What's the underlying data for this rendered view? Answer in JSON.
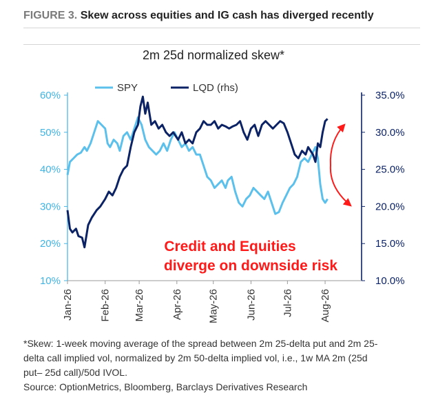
{
  "figure": {
    "label": "FIGURE 3.",
    "title": "Skew across equities and IG cash has diverged recently"
  },
  "chart_data": {
    "type": "line",
    "title": "2m 25d normalized skew*",
    "x_ticks": [
      "Jan-26",
      "Feb-26",
      "Mar-26",
      "Apr-26",
      "May-26",
      "Jun-26",
      "Jul-26",
      "Aug-26"
    ],
    "x_range": [
      "2026-01-01",
      "2026-08-31"
    ],
    "y_left": {
      "ticks": [
        "10%",
        "20%",
        "30%",
        "40%",
        "50%",
        "60%"
      ],
      "range": [
        10,
        60
      ],
      "color": "#40b4e5"
    },
    "y_right": {
      "ticks": [
        "10.0%",
        "15.0%",
        "20.0%",
        "25.0%",
        "30.0%",
        "35.0%"
      ],
      "range": [
        10,
        35
      ],
      "color": "#0b2265"
    },
    "grid": false,
    "legend": {
      "placement": "top-left"
    },
    "series": [
      {
        "name": "SPY",
        "axis": "left",
        "color": "#5bc0eb",
        "points": [
          [
            "2026-01-01",
            38.5
          ],
          [
            "2026-01-03",
            42
          ],
          [
            "2026-01-06",
            43
          ],
          [
            "2026-01-09",
            44
          ],
          [
            "2026-01-12",
            44.5
          ],
          [
            "2026-01-15",
            46
          ],
          [
            "2026-01-17",
            45
          ],
          [
            "2026-01-20",
            47
          ],
          [
            "2026-01-23",
            50
          ],
          [
            "2026-01-26",
            53
          ],
          [
            "2026-01-29",
            52
          ],
          [
            "2026-02-01",
            51
          ],
          [
            "2026-02-03",
            47
          ],
          [
            "2026-02-05",
            46
          ],
          [
            "2026-02-08",
            48
          ],
          [
            "2026-02-11",
            47
          ],
          [
            "2026-02-13",
            45
          ],
          [
            "2026-02-16",
            49
          ],
          [
            "2026-02-19",
            50
          ],
          [
            "2026-02-22",
            48
          ],
          [
            "2026-02-25",
            51
          ],
          [
            "2026-02-28",
            54
          ],
          [
            "2026-03-03",
            52
          ],
          [
            "2026-03-06",
            48
          ],
          [
            "2026-03-09",
            46
          ],
          [
            "2026-03-12",
            45
          ],
          [
            "2026-03-15",
            44
          ],
          [
            "2026-03-18",
            45
          ],
          [
            "2026-03-21",
            47
          ],
          [
            "2026-03-24",
            45
          ],
          [
            "2026-03-27",
            48
          ],
          [
            "2026-03-30",
            50
          ],
          [
            "2026-04-02",
            48
          ],
          [
            "2026-04-05",
            46
          ],
          [
            "2026-04-08",
            47
          ],
          [
            "2026-04-11",
            45
          ],
          [
            "2026-04-14",
            46
          ],
          [
            "2026-04-17",
            44
          ],
          [
            "2026-04-20",
            44
          ],
          [
            "2026-04-23",
            41
          ],
          [
            "2026-04-26",
            38
          ],
          [
            "2026-04-29",
            37
          ],
          [
            "2026-05-02",
            35
          ],
          [
            "2026-05-05",
            36
          ],
          [
            "2026-05-08",
            37
          ],
          [
            "2026-05-11",
            35
          ],
          [
            "2026-05-13",
            37
          ],
          [
            "2026-05-16",
            38
          ],
          [
            "2026-05-19",
            34
          ],
          [
            "2026-05-22",
            31
          ],
          [
            "2026-05-25",
            30
          ],
          [
            "2026-05-28",
            32
          ],
          [
            "2026-05-31",
            33
          ],
          [
            "2026-06-03",
            35
          ],
          [
            "2026-06-06",
            34
          ],
          [
            "2026-06-09",
            33
          ],
          [
            "2026-06-12",
            32
          ],
          [
            "2026-06-15",
            34
          ],
          [
            "2026-06-18",
            31
          ],
          [
            "2026-06-21",
            28
          ],
          [
            "2026-06-24",
            28.5
          ],
          [
            "2026-06-27",
            31
          ],
          [
            "2026-06-30",
            33
          ],
          [
            "2026-07-03",
            35
          ],
          [
            "2026-07-06",
            36
          ],
          [
            "2026-07-09",
            38
          ],
          [
            "2026-07-12",
            42
          ],
          [
            "2026-07-15",
            43
          ],
          [
            "2026-07-18",
            42
          ],
          [
            "2026-07-21",
            44
          ],
          [
            "2026-07-24",
            46
          ],
          [
            "2026-07-26",
            43
          ],
          [
            "2026-07-28",
            36
          ],
          [
            "2026-07-30",
            32
          ],
          [
            "2026-08-01",
            31
          ],
          [
            "2026-08-03",
            32
          ]
        ]
      },
      {
        "name": "LQD (rhs)",
        "axis": "right",
        "color": "#0b2265",
        "points": [
          [
            "2026-01-01",
            19.5
          ],
          [
            "2026-01-03",
            17
          ],
          [
            "2026-01-05",
            16.5
          ],
          [
            "2026-01-08",
            17
          ],
          [
            "2026-01-10",
            16
          ],
          [
            "2026-01-13",
            15.8
          ],
          [
            "2026-01-15",
            14.5
          ],
          [
            "2026-01-18",
            17.5
          ],
          [
            "2026-01-21",
            18.5
          ],
          [
            "2026-01-25",
            19.5
          ],
          [
            "2026-01-28",
            20
          ],
          [
            "2026-02-01",
            21
          ],
          [
            "2026-02-04",
            22
          ],
          [
            "2026-02-07",
            21.5
          ],
          [
            "2026-02-10",
            22.5
          ],
          [
            "2026-02-13",
            24
          ],
          [
            "2026-02-16",
            25
          ],
          [
            "2026-02-19",
            25.5
          ],
          [
            "2026-02-22",
            28
          ],
          [
            "2026-02-25",
            30
          ],
          [
            "2026-02-28",
            31
          ],
          [
            "2026-03-02",
            33.5
          ],
          [
            "2026-03-04",
            34.8
          ],
          [
            "2026-03-06",
            32.5
          ],
          [
            "2026-03-08",
            34
          ],
          [
            "2026-03-11",
            31
          ],
          [
            "2026-03-14",
            31.5
          ],
          [
            "2026-03-17",
            30.5
          ],
          [
            "2026-03-20",
            31
          ],
          [
            "2026-03-23",
            30
          ],
          [
            "2026-03-26",
            29.5
          ],
          [
            "2026-03-29",
            30
          ],
          [
            "2026-04-02",
            29
          ],
          [
            "2026-04-05",
            30
          ],
          [
            "2026-04-08",
            28.5
          ],
          [
            "2026-04-11",
            29
          ],
          [
            "2026-04-14",
            28.5
          ],
          [
            "2026-04-17",
            30
          ],
          [
            "2026-04-20",
            30.5
          ],
          [
            "2026-04-23",
            31.5
          ],
          [
            "2026-04-26",
            31
          ],
          [
            "2026-04-29",
            31
          ],
          [
            "2026-05-02",
            31.5
          ],
          [
            "2026-05-05",
            30.5
          ],
          [
            "2026-05-08",
            31
          ],
          [
            "2026-05-11",
            30.8
          ],
          [
            "2026-05-14",
            30.5
          ],
          [
            "2026-05-17",
            30.8
          ],
          [
            "2026-05-20",
            31
          ],
          [
            "2026-05-23",
            31.5
          ],
          [
            "2026-05-26",
            30
          ],
          [
            "2026-05-29",
            29
          ],
          [
            "2026-06-01",
            30.5
          ],
          [
            "2026-06-04",
            31
          ],
          [
            "2026-06-07",
            29.5
          ],
          [
            "2026-06-10",
            31
          ],
          [
            "2026-06-13",
            31.5
          ],
          [
            "2026-06-16",
            31
          ],
          [
            "2026-06-19",
            30.5
          ],
          [
            "2026-06-22",
            31
          ],
          [
            "2026-06-25",
            31.5
          ],
          [
            "2026-06-28",
            31.2
          ],
          [
            "2026-07-01",
            30
          ],
          [
            "2026-07-04",
            28.5
          ],
          [
            "2026-07-07",
            27
          ],
          [
            "2026-07-10",
            26.5
          ],
          [
            "2026-07-13",
            27.5
          ],
          [
            "2026-07-16",
            27
          ],
          [
            "2026-07-18",
            28
          ],
          [
            "2026-07-20",
            27.5
          ],
          [
            "2026-07-22",
            27
          ],
          [
            "2026-07-24",
            26
          ],
          [
            "2026-07-26",
            28.5
          ],
          [
            "2026-07-28",
            28
          ],
          [
            "2026-07-30",
            30
          ],
          [
            "2026-08-01",
            31.5
          ],
          [
            "2026-08-03",
            31.8
          ]
        ]
      }
    ],
    "annotation": {
      "lines": [
        "Credit and Equities",
        "diverge on downside risk"
      ],
      "color": "#ff1a1a"
    }
  },
  "notes": {
    "lines": [
      "*Skew: 1-week moving average of the spread between 2m 25-delta put and 2m 25-",
      "delta call implied vol, normalized by 2m 50-delta implied vol, i.e., 1w MA 2m (25d",
      "put– 25d call)/50d IVOL.",
      "Source: OptionMetrics, Bloomberg, Barclays Derivatives Research"
    ]
  }
}
